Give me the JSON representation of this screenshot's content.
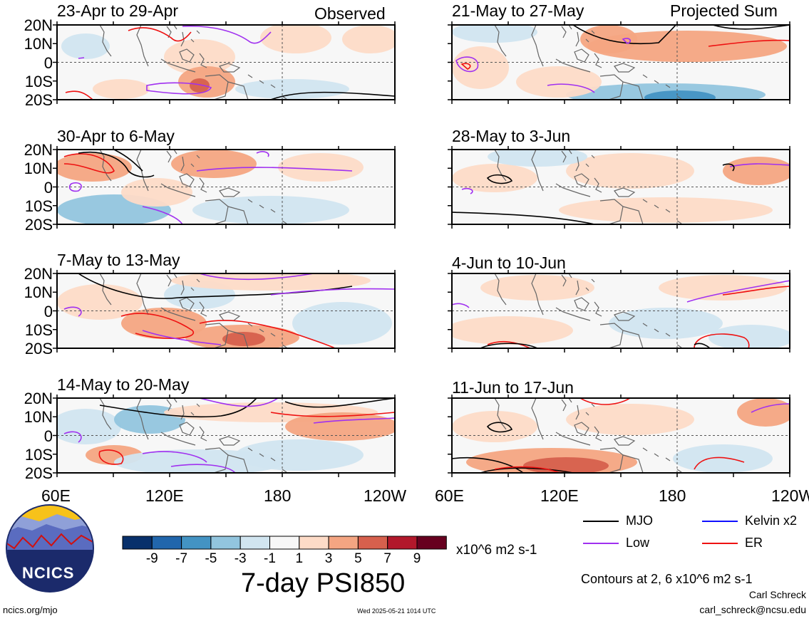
{
  "panels": [
    {
      "period": "23-Apr to 29-Apr",
      "tag": "Observed"
    },
    {
      "period": "21-May to 27-May",
      "tag": "Projected Sum"
    },
    {
      "period": "30-Apr to 6-May",
      "tag": ""
    },
    {
      "period": "28-May to 3-Jun",
      "tag": ""
    },
    {
      "period": "7-May to 13-May",
      "tag": ""
    },
    {
      "period": "4-Jun to 10-Jun",
      "tag": ""
    },
    {
      "period": "14-May to 20-May",
      "tag": ""
    },
    {
      "period": "11-Jun to 17-Jun",
      "tag": ""
    }
  ],
  "lat_labels": [
    "20N",
    "10N",
    "0",
    "10S",
    "20S"
  ],
  "lon_labels": [
    "60E",
    "120E",
    "180",
    "120W"
  ],
  "colorbar": {
    "colors": [
      "#08306b",
      "#2166ac",
      "#4393c3",
      "#92c5de",
      "#d1e5f0",
      "#f7f7f7",
      "#fddbc7",
      "#f4a582",
      "#d6604d",
      "#b2182b",
      "#67001f"
    ],
    "tick_labels": [
      "-9",
      "-7",
      "-5",
      "-3",
      "-1",
      "1",
      "3",
      "5",
      "7",
      "9"
    ],
    "units": "x10^6 m2 s-1"
  },
  "title": "7-day PSI850",
  "legend": [
    {
      "label": "MJO",
      "color": "#000000"
    },
    {
      "label": "Kelvin x2",
      "color": "#1010ff"
    },
    {
      "label": "Low",
      "color": "#a030f0"
    },
    {
      "label": "ER",
      "color": "#ee1111"
    }
  ],
  "contour_note": "Contours at 2, 6 x10^6 m2 s-1",
  "logo_text": "NCICS",
  "author": "Carl Schreck",
  "email": "carl_schreck@ncsu.edu",
  "url": "ncics.org/mjo",
  "timestamp": "Wed 2025-05-21 1014 UTC"
}
